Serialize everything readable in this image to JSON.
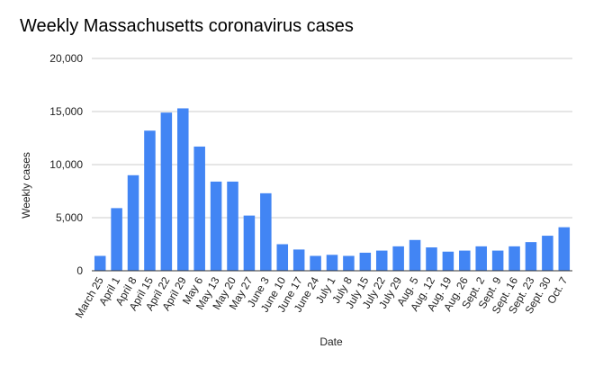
{
  "colors": {
    "bar": "#4285f4",
    "grid": "#cccccc",
    "text": "#222222",
    "axis": "#333333"
  },
  "chart_data": {
    "type": "bar",
    "title": "Weekly Massachusetts coronavirus cases",
    "xlabel": "Date",
    "ylabel": "Weekly cases",
    "ylim": [
      0,
      20000
    ],
    "yticks": [
      0,
      5000,
      10000,
      15000,
      20000
    ],
    "ytick_labels": [
      "0",
      "5,000",
      "10,000",
      "15,000",
      "20,000"
    ],
    "grid": true,
    "legend": "none",
    "categories": [
      "March 25",
      "April 1",
      "April 8",
      "April 15",
      "April 22",
      "April 29",
      "May 6",
      "May 13",
      "May 20",
      "May 27",
      "June 3",
      "June 10",
      "June 17",
      "June 24",
      "July 1",
      "July 8",
      "July 15",
      "July 22",
      "July 29",
      "Aug. 5",
      "Aug. 12",
      "Aug. 19",
      "Aug. 26",
      "Sept. 2",
      "Sept. 9",
      "Sept. 16",
      "Sept. 23",
      "Sept. 30",
      "Oct. 7"
    ],
    "values": [
      1400,
      5900,
      9000,
      13200,
      14900,
      15300,
      11700,
      8400,
      8400,
      5200,
      7300,
      2500,
      2000,
      1400,
      1500,
      1400,
      1700,
      1900,
      2300,
      2900,
      2200,
      1800,
      1900,
      2300,
      1900,
      2300,
      2700,
      3300,
      4100
    ]
  }
}
